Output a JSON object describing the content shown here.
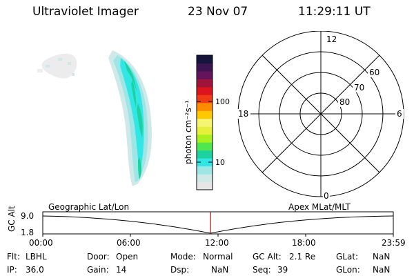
{
  "header": {
    "instrument": "Ultraviolet Imager",
    "date": "23 Nov 07",
    "time": "11:29:11 UT"
  },
  "colorbar": {
    "label": "photon cm⁻²s⁻¹",
    "ticks": [
      {
        "label": "100",
        "value": 100
      },
      {
        "label": "10",
        "value": 10
      }
    ],
    "colors": [
      "#e6e6e6",
      "#cfe8e8",
      "#9ee6e6",
      "#32e6e6",
      "#1ed2a0",
      "#50e650",
      "#a8f01e",
      "#e6f03c",
      "#f5f573",
      "#ffc800",
      "#ff8c00",
      "#f03c14",
      "#dc141e",
      "#a0143c",
      "#64145a",
      "#3c1450",
      "#14143c"
    ]
  },
  "polar_plot": {
    "mlt_labels": {
      "top": "12",
      "left": "18",
      "right": "6",
      "bottom": "0"
    },
    "lat_labels": [
      "60",
      "70",
      "80"
    ]
  },
  "timeline": {
    "left_label": "Geographic Lat/Lon",
    "right_label": "Apex MLat/MLT",
    "y_axis_label": "GC Alt",
    "y_top": "9.0",
    "y_bottom": "1.8",
    "ticks": [
      "00:00",
      "06:00",
      "12:00",
      "18:00",
      "23:59"
    ],
    "current_time_hours": 11.49
  },
  "status": {
    "flt_label": "Flt:",
    "flt_value": "LBHL",
    "ip_label": "IP:",
    "ip_value": "36.0",
    "door_label": "Door:",
    "door_value": "Open",
    "gain_label": "Gain:",
    "gain_value": "14",
    "mode_label": "Mode:",
    "mode_value": "Normal",
    "dsp_label": "Dsp:",
    "dsp_value": "NaN",
    "gcalt_label": "GC Alt:",
    "gcalt_value": "2.1 Re",
    "seq_label": "Seq:",
    "seq_value": "39",
    "glat_label": "GLat:",
    "glat_value": "NaN",
    "glon_label": "GLon:",
    "glon_value": "NaN"
  }
}
